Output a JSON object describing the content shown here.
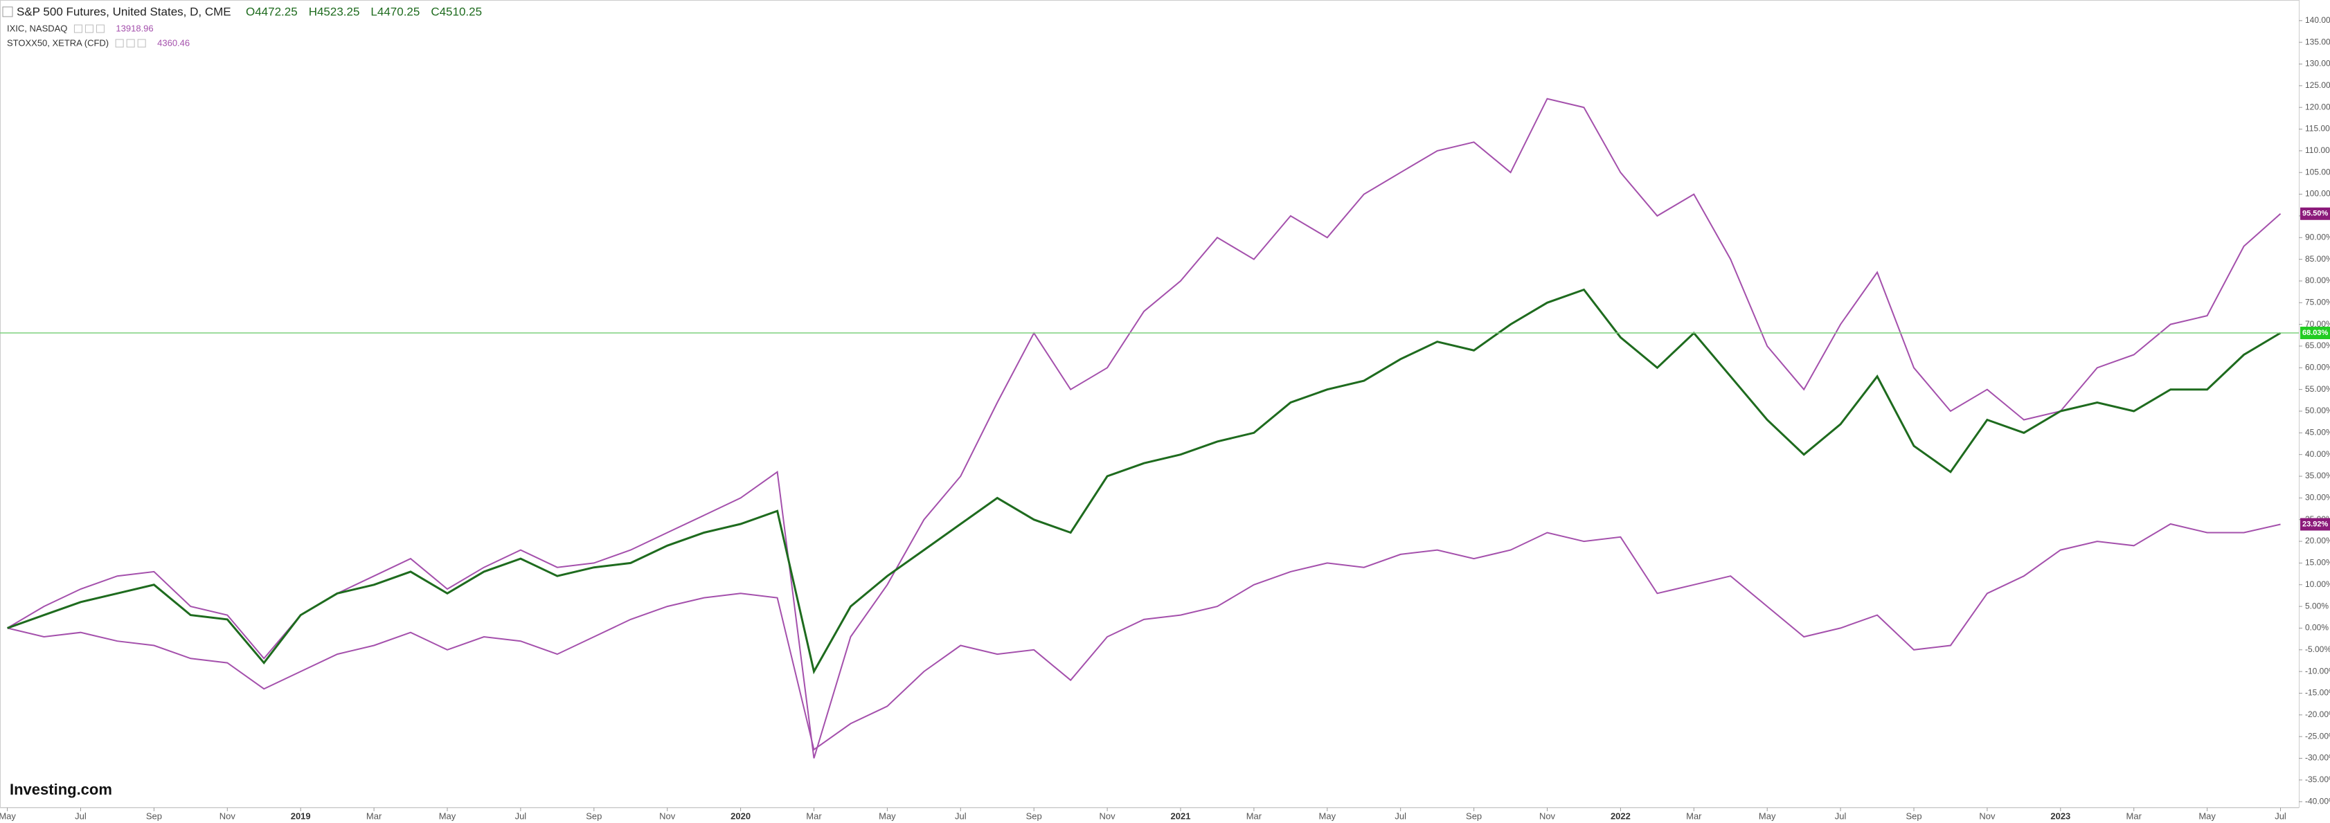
{
  "chart_data": {
    "type": "line",
    "title": "S&P 500 Futures, United States, D, CME",
    "ohlc": [
      "O4472.25",
      "H4523.25",
      "L4470.25",
      "C4510.25"
    ],
    "logo": "Investing.com",
    "x": [
      0,
      1,
      2,
      3,
      4,
      5,
      6,
      7,
      8,
      9,
      10,
      11,
      12,
      13,
      14,
      15,
      16,
      17,
      18,
      19,
      20,
      21,
      22,
      23,
      24,
      25,
      26,
      27,
      28,
      29,
      30,
      31,
      32,
      33,
      34,
      35,
      36,
      37,
      38,
      39,
      40,
      41,
      42,
      43,
      44,
      45,
      46,
      47,
      48,
      49,
      50,
      51,
      52,
      53,
      54,
      55,
      56,
      57,
      58,
      59,
      60,
      61,
      62
    ],
    "xlim": [
      -0.2,
      62.5
    ],
    "xticks": [
      {
        "value": 0,
        "label": "May"
      },
      {
        "value": 2,
        "label": "Jul"
      },
      {
        "value": 4,
        "label": "Sep"
      },
      {
        "value": 6,
        "label": "Nov"
      },
      {
        "value": 8,
        "label": "2019"
      },
      {
        "value": 10,
        "label": "Mar"
      },
      {
        "value": 12,
        "label": "May"
      },
      {
        "value": 14,
        "label": "Jul"
      },
      {
        "value": 16,
        "label": "Sep"
      },
      {
        "value": 18,
        "label": "Nov"
      },
      {
        "value": 20,
        "label": "2020"
      },
      {
        "value": 22,
        "label": "Mar"
      },
      {
        "value": 24,
        "label": "May"
      },
      {
        "value": 26,
        "label": "Jul"
      },
      {
        "value": 28,
        "label": "Sep"
      },
      {
        "value": 30,
        "label": "Nov"
      },
      {
        "value": 32,
        "label": "2021"
      },
      {
        "value": 34,
        "label": "Mar"
      },
      {
        "value": 36,
        "label": "May"
      },
      {
        "value": 38,
        "label": "Jul"
      },
      {
        "value": 40,
        "label": "Sep"
      },
      {
        "value": 42,
        "label": "Nov"
      },
      {
        "value": 44,
        "label": "2022"
      },
      {
        "value": 46,
        "label": "Mar"
      },
      {
        "value": 48,
        "label": "May"
      },
      {
        "value": 50,
        "label": "Jul"
      },
      {
        "value": 52,
        "label": "Sep"
      },
      {
        "value": 54,
        "label": "Nov"
      },
      {
        "value": 56,
        "label": "2023"
      },
      {
        "value": 58,
        "label": "Mar"
      },
      {
        "value": 60,
        "label": "May"
      },
      {
        "value": 62,
        "label": "Jul"
      }
    ],
    "ylim": [
      -43,
      143
    ],
    "yticks": [
      {
        "value": -40,
        "label": "-40.00%"
      },
      {
        "value": -35,
        "label": "-35.00%"
      },
      {
        "value": -30,
        "label": "-30.00%"
      },
      {
        "value": -25,
        "label": "-25.00%"
      },
      {
        "value": -20,
        "label": "-20.00%"
      },
      {
        "value": -15,
        "label": "-15.00%"
      },
      {
        "value": -10,
        "label": "-10.00%"
      },
      {
        "value": -5,
        "label": "-5.00%"
      },
      {
        "value": 0,
        "label": "0.00%"
      },
      {
        "value": 5,
        "label": "5.00%"
      },
      {
        "value": 10,
        "label": "10.00%"
      },
      {
        "value": 15,
        "label": "15.00%"
      },
      {
        "value": 20,
        "label": "20.00%"
      },
      {
        "value": 25,
        "label": "25.00%"
      },
      {
        "value": 30,
        "label": "30.00%"
      },
      {
        "value": 35,
        "label": "35.00%"
      },
      {
        "value": 40,
        "label": "40.00%"
      },
      {
        "value": 45,
        "label": "45.00%"
      },
      {
        "value": 50,
        "label": "50.00%"
      },
      {
        "value": 55,
        "label": "55.00%"
      },
      {
        "value": 60,
        "label": "60.00%"
      },
      {
        "value": 65,
        "label": "65.00%"
      },
      {
        "value": 70,
        "label": "70.00%"
      },
      {
        "value": 75,
        "label": "75.00%"
      },
      {
        "value": 80,
        "label": "80.00%"
      },
      {
        "value": 85,
        "label": "85.00%"
      },
      {
        "value": 90,
        "label": "90.00%"
      },
      {
        "value": 95,
        "label": "95.00%"
      },
      {
        "value": 100,
        "label": "100.00%"
      },
      {
        "value": 105,
        "label": "105.00%"
      },
      {
        "value": 110,
        "label": "110.00%"
      },
      {
        "value": 115,
        "label": "115.00%"
      },
      {
        "value": 120,
        "label": "120.00%"
      },
      {
        "value": 125,
        "label": "125.00%"
      },
      {
        "value": 130,
        "label": "130.00%"
      },
      {
        "value": 135,
        "label": "135.00%"
      },
      {
        "value": 140,
        "label": "140.00%"
      }
    ],
    "series": [
      {
        "name": "IXIC, NASDAQ",
        "quote": "13918.96",
        "color": "#a450ac",
        "price_tag": "95.50%",
        "tag_color": "#8b1a7a",
        "values": [
          0,
          5,
          9,
          12,
          13,
          5,
          3,
          -7,
          3,
          8,
          12,
          16,
          9,
          14,
          18,
          14,
          15,
          18,
          22,
          26,
          30,
          36,
          -30,
          -2,
          10,
          25,
          35,
          52,
          68,
          55,
          60,
          73,
          80,
          90,
          85,
          95,
          90,
          100,
          105,
          110,
          112,
          105,
          122,
          120,
          105,
          95,
          100,
          85,
          65,
          55,
          70,
          82,
          60,
          50,
          55,
          48,
          50,
          60,
          63,
          70,
          72,
          88,
          95.5
        ]
      },
      {
        "name": "STOXX50, XETRA (CFD)",
        "quote": "4360.46",
        "color": "#a450ac",
        "price_tag": "23.92%",
        "tag_color": "#8b1a7a",
        "values": [
          0,
          -2,
          -1,
          -3,
          -4,
          -7,
          -8,
          -14,
          -10,
          -6,
          -4,
          -1,
          -5,
          -2,
          -3,
          -6,
          -2,
          2,
          5,
          7,
          8,
          7,
          -28,
          -22,
          -18,
          -10,
          -4,
          -6,
          -5,
          -12,
          -2,
          2,
          3,
          5,
          10,
          13,
          15,
          14,
          17,
          18,
          16,
          18,
          22,
          20,
          21,
          8,
          10,
          12,
          5,
          -2,
          0,
          3,
          -5,
          -4,
          8,
          12,
          18,
          20,
          19,
          24,
          22,
          22,
          23.92
        ]
      },
      {
        "name": "S&P 500 Futures",
        "color": "#1e6b1e",
        "price_tag": "68.03%",
        "tag_color": "#22cc22",
        "values": [
          0,
          3,
          6,
          8,
          10,
          3,
          2,
          -8,
          3,
          8,
          10,
          13,
          8,
          13,
          16,
          12,
          14,
          15,
          19,
          22,
          24,
          27,
          -10,
          5,
          12,
          18,
          24,
          30,
          25,
          22,
          35,
          38,
          40,
          43,
          45,
          52,
          55,
          57,
          62,
          66,
          64,
          70,
          75,
          78,
          67,
          60,
          68,
          58,
          48,
          40,
          47,
          58,
          42,
          36,
          48,
          45,
          50,
          52,
          50,
          55,
          55,
          63,
          68.03
        ]
      }
    ]
  }
}
